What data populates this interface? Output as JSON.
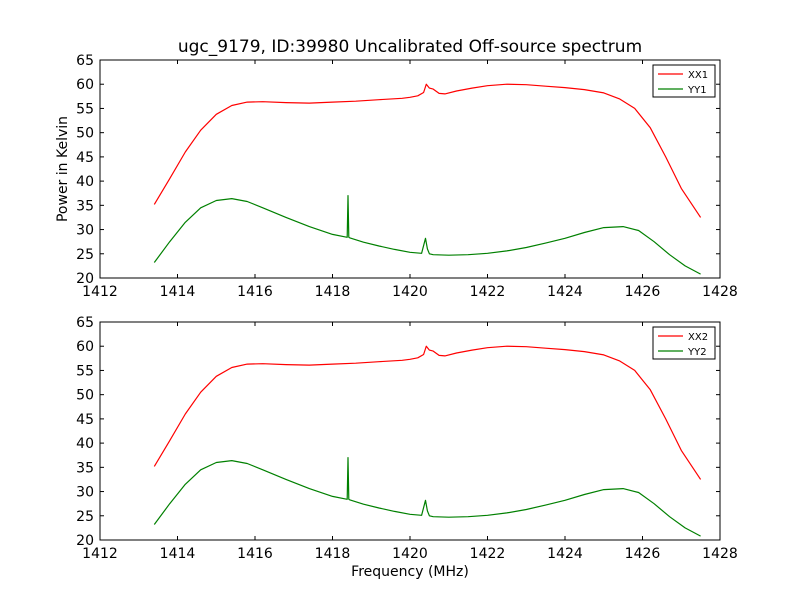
{
  "chart_data": [
    {
      "type": "line",
      "title": "ugc_9179, ID:39980 Uncalibrated Off-source spectrum",
      "xlabel": "",
      "ylabel": "Power in Kelvin",
      "xlim": [
        1412,
        1428
      ],
      "ylim": [
        20,
        65
      ],
      "xticks": [
        "1412",
        "1414",
        "1416",
        "1418",
        "1420",
        "1422",
        "1424",
        "1426",
        "1428"
      ],
      "yticks": [
        "20",
        "25",
        "30",
        "35",
        "40",
        "45",
        "50",
        "55",
        "60",
        "65"
      ],
      "legend_position": "top-right",
      "grid": false,
      "series": [
        {
          "name": "XX1",
          "color": "#ff0000",
          "x": [
            1413.4,
            1413.8,
            1414.2,
            1414.6,
            1415.0,
            1415.4,
            1415.8,
            1416.2,
            1416.8,
            1417.4,
            1418.0,
            1418.6,
            1419.2,
            1419.8,
            1420.0,
            1420.2,
            1420.35,
            1420.42,
            1420.5,
            1420.6,
            1420.75,
            1420.9,
            1421.2,
            1421.6,
            1422.0,
            1422.5,
            1423.0,
            1423.5,
            1424.0,
            1424.5,
            1425.0,
            1425.4,
            1425.8,
            1426.2,
            1426.6,
            1427.0,
            1427.5
          ],
          "y": [
            35.2,
            40.5,
            46.0,
            50.5,
            53.8,
            55.6,
            56.3,
            56.4,
            56.2,
            56.1,
            56.3,
            56.5,
            56.8,
            57.1,
            57.3,
            57.6,
            58.3,
            60.0,
            59.2,
            59.0,
            58.1,
            58.0,
            58.6,
            59.2,
            59.7,
            60.0,
            59.9,
            59.6,
            59.3,
            58.9,
            58.2,
            57.0,
            55.0,
            51.0,
            45.0,
            38.5,
            32.5
          ]
        },
        {
          "name": "YY1",
          "color": "#008000",
          "x": [
            1413.4,
            1413.8,
            1414.2,
            1414.6,
            1415.0,
            1415.4,
            1415.8,
            1416.2,
            1416.8,
            1417.4,
            1418.0,
            1418.38,
            1418.4,
            1418.42,
            1418.44,
            1418.8,
            1419.2,
            1419.6,
            1420.0,
            1420.3,
            1420.4,
            1420.45,
            1420.5,
            1420.6,
            1421.0,
            1421.5,
            1422.0,
            1422.5,
            1423.0,
            1423.5,
            1424.0,
            1424.5,
            1425.0,
            1425.5,
            1425.9,
            1426.3,
            1426.7,
            1427.1,
            1427.5
          ],
          "y": [
            23.2,
            27.5,
            31.5,
            34.5,
            36.0,
            36.4,
            35.8,
            34.5,
            32.5,
            30.6,
            29.0,
            28.4,
            37.0,
            28.4,
            28.3,
            27.4,
            26.6,
            25.9,
            25.3,
            25.1,
            28.2,
            26.0,
            25.0,
            24.8,
            24.7,
            24.8,
            25.1,
            25.6,
            26.3,
            27.2,
            28.2,
            29.4,
            30.4,
            30.6,
            29.8,
            27.5,
            24.8,
            22.5,
            20.8
          ]
        }
      ]
    },
    {
      "type": "line",
      "title": "",
      "xlabel": "Frequency (MHz)",
      "ylabel": "",
      "xlim": [
        1412,
        1428
      ],
      "ylim": [
        20,
        65
      ],
      "xticks": [
        "1412",
        "1414",
        "1416",
        "1418",
        "1420",
        "1422",
        "1424",
        "1426",
        "1428"
      ],
      "yticks": [
        "20",
        "25",
        "30",
        "35",
        "40",
        "45",
        "50",
        "55",
        "60",
        "65"
      ],
      "legend_position": "top-right",
      "grid": false,
      "series": [
        {
          "name": "XX2",
          "color": "#ff0000",
          "x": [
            1413.4,
            1413.8,
            1414.2,
            1414.6,
            1415.0,
            1415.4,
            1415.8,
            1416.2,
            1416.8,
            1417.4,
            1418.0,
            1418.6,
            1419.2,
            1419.8,
            1420.0,
            1420.2,
            1420.35,
            1420.42,
            1420.5,
            1420.6,
            1420.75,
            1420.9,
            1421.2,
            1421.6,
            1422.0,
            1422.5,
            1423.0,
            1423.5,
            1424.0,
            1424.5,
            1425.0,
            1425.4,
            1425.8,
            1426.2,
            1426.6,
            1427.0,
            1427.5
          ],
          "y": [
            35.2,
            40.5,
            46.0,
            50.5,
            53.8,
            55.6,
            56.3,
            56.4,
            56.2,
            56.1,
            56.3,
            56.5,
            56.8,
            57.1,
            57.3,
            57.6,
            58.3,
            60.0,
            59.2,
            59.0,
            58.1,
            58.0,
            58.6,
            59.2,
            59.7,
            60.0,
            59.9,
            59.6,
            59.3,
            58.9,
            58.2,
            57.0,
            55.0,
            51.0,
            45.0,
            38.5,
            32.5
          ]
        },
        {
          "name": "YY2",
          "color": "#008000",
          "x": [
            1413.4,
            1413.8,
            1414.2,
            1414.6,
            1415.0,
            1415.4,
            1415.8,
            1416.2,
            1416.8,
            1417.4,
            1418.0,
            1418.38,
            1418.4,
            1418.42,
            1418.44,
            1418.8,
            1419.2,
            1419.6,
            1420.0,
            1420.3,
            1420.4,
            1420.45,
            1420.5,
            1420.6,
            1421.0,
            1421.5,
            1422.0,
            1422.5,
            1423.0,
            1423.5,
            1424.0,
            1424.5,
            1425.0,
            1425.5,
            1425.9,
            1426.3,
            1426.7,
            1427.1,
            1427.5
          ],
          "y": [
            23.2,
            27.5,
            31.5,
            34.5,
            36.0,
            36.4,
            35.8,
            34.5,
            32.5,
            30.6,
            29.0,
            28.4,
            37.0,
            28.4,
            28.3,
            27.4,
            26.6,
            25.9,
            25.3,
            25.1,
            28.2,
            26.0,
            25.0,
            24.8,
            24.7,
            24.8,
            25.1,
            25.6,
            26.3,
            27.2,
            28.2,
            29.4,
            30.4,
            30.6,
            29.8,
            27.5,
            24.8,
            22.5,
            20.8
          ]
        }
      ]
    }
  ]
}
